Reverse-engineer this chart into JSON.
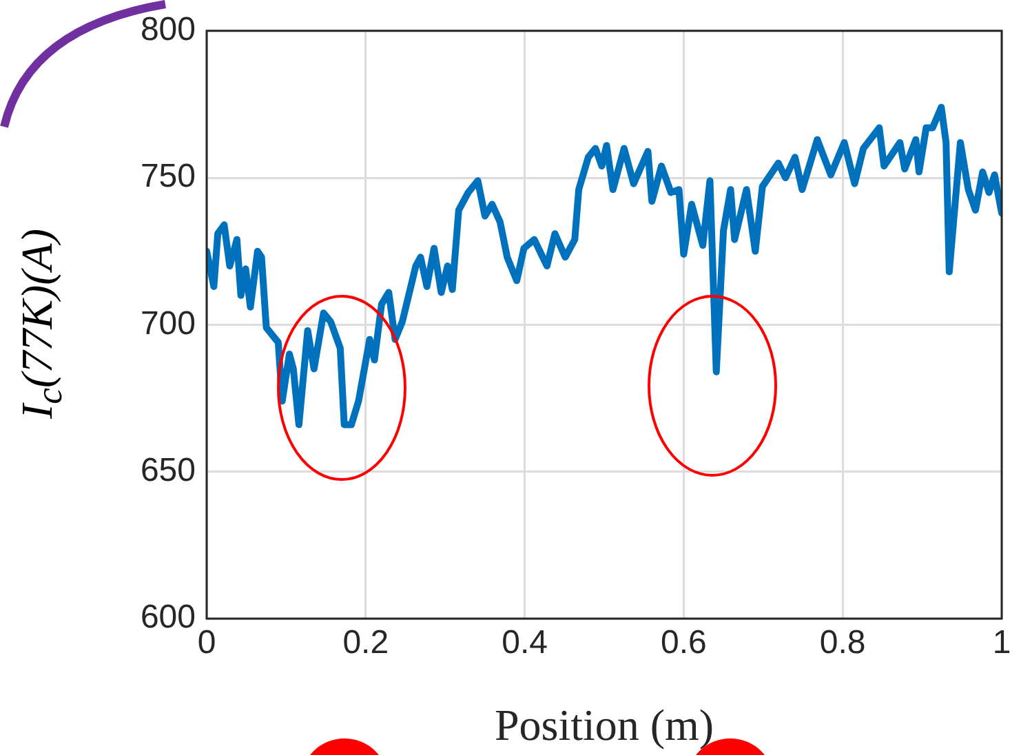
{
  "chart_data": {
    "type": "line",
    "xlabel": "Position (m)",
    "ylabel": "I$_{c}$(77K)(A)",
    "series": [
      {
        "color": "#0072bd",
        "x": [
          0,
          0.009,
          0.014,
          0.022,
          0.029,
          0.038,
          0.043,
          0.049,
          0.055,
          0.064,
          0.069,
          0.075,
          0.09,
          0.095,
          0.104,
          0.109,
          0.116,
          0.127,
          0.135,
          0.147,
          0.156,
          0.168,
          0.173,
          0.182,
          0.191,
          0.205,
          0.211,
          0.22,
          0.229,
          0.237,
          0.246,
          0.255,
          0.263,
          0.269,
          0.277,
          0.286,
          0.295,
          0.303,
          0.309,
          0.317,
          0.329,
          0.341,
          0.35,
          0.359,
          0.369,
          0.378,
          0.39,
          0.399,
          0.412,
          0.428,
          0.438,
          0.451,
          0.463,
          0.468,
          0.48,
          0.489,
          0.497,
          0.503,
          0.511,
          0.525,
          0.537,
          0.555,
          0.56,
          0.572,
          0.584,
          0.594,
          0.6,
          0.61,
          0.624,
          0.633,
          0.641,
          0.65,
          0.659,
          0.664,
          0.679,
          0.69,
          0.699,
          0.719,
          0.728,
          0.74,
          0.749,
          0.768,
          0.785,
          0.802,
          0.815,
          0.826,
          0.846,
          0.852,
          0.872,
          0.878,
          0.892,
          0.896,
          0.905,
          0.913,
          0.924,
          0.93,
          0.934,
          0.948,
          0.958,
          0.967,
          0.976,
          0.984,
          0.991,
          1
        ],
        "values": [
          725,
          713,
          731,
          734,
          720,
          729,
          710,
          719,
          706,
          725,
          723,
          699,
          694,
          674,
          690,
          685,
          666,
          698,
          685,
          704,
          701,
          692,
          666,
          666,
          674,
          695,
          688,
          707,
          711,
          695,
          701,
          711,
          720,
          723,
          713,
          726,
          711,
          720,
          712,
          739,
          745,
          749,
          737,
          741,
          735,
          723,
          715,
          726,
          729,
          720,
          731,
          723,
          729,
          746,
          757,
          760,
          754,
          761,
          746,
          760,
          748,
          759,
          742,
          754,
          745,
          746,
          724,
          741,
          727,
          749,
          684,
          732,
          746,
          729,
          746,
          725,
          747,
          755,
          750,
          757,
          746,
          763,
          751,
          762,
          748,
          760,
          767,
          754,
          762,
          753,
          763,
          752,
          767,
          767,
          774,
          762,
          718,
          762,
          746,
          739,
          752,
          745,
          751,
          738
        ]
      }
    ],
    "xlim": [
      0,
      1
    ],
    "xticks": [
      0,
      0.2,
      0.4,
      0.6,
      0.8,
      1
    ],
    "ylim": [
      600,
      800
    ],
    "yticks": [
      600,
      650,
      700,
      750,
      800
    ],
    "grid": true,
    "legend": false,
    "marker": "none",
    "line_style": "solid"
  }
}
